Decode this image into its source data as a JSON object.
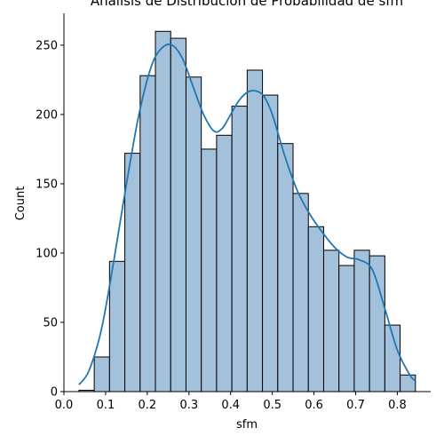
{
  "chart_data": {
    "type": "bar",
    "title": "Análisis de Distribución de Probabilidad de sfm",
    "xlabel": "sfm",
    "ylabel": "Count",
    "xlim": [
      0.0,
      0.88
    ],
    "ylim": [
      0,
      273
    ],
    "x_ticks": [
      0.0,
      0.1,
      0.2,
      0.3,
      0.4,
      0.5,
      0.6,
      0.7,
      0.8
    ],
    "x_tick_labels": [
      "0.0",
      "0.1",
      "0.2",
      "0.3",
      "0.4",
      "0.5",
      "0.6",
      "0.7",
      "0.8"
    ],
    "y_ticks": [
      0,
      50,
      100,
      150,
      200,
      250
    ],
    "y_tick_labels": [
      "0",
      "50",
      "100",
      "150",
      "200",
      "250"
    ],
    "bin_edges": [
      0.036,
      0.0727,
      0.1094,
      0.1461,
      0.1828,
      0.2195,
      0.2562,
      0.2929,
      0.3296,
      0.3663,
      0.403,
      0.4397,
      0.4764,
      0.5131,
      0.5498,
      0.5865,
      0.6232,
      0.6599,
      0.6966,
      0.7333,
      0.77,
      0.8067,
      0.8434
    ],
    "counts": [
      1,
      25,
      94,
      172,
      228,
      260,
      255,
      227,
      175,
      185,
      206,
      232,
      214,
      179,
      143,
      119,
      102,
      91,
      102,
      98,
      48,
      12
    ],
    "kde": {
      "x": [
        0.036,
        0.06,
        0.09,
        0.12,
        0.15,
        0.18,
        0.21,
        0.235,
        0.26,
        0.285,
        0.31,
        0.335,
        0.36,
        0.38,
        0.4,
        0.42,
        0.44,
        0.46,
        0.48,
        0.5,
        0.53,
        0.56,
        0.59,
        0.62,
        0.65,
        0.68,
        0.71,
        0.74,
        0.77,
        0.8,
        0.83,
        0.843
      ],
      "y": [
        5,
        15,
        45,
        95,
        150,
        200,
        235,
        248,
        250,
        240,
        220,
        200,
        188,
        190,
        200,
        210,
        216,
        217,
        213,
        200,
        170,
        145,
        128,
        115,
        104,
        97,
        95,
        88,
        60,
        30,
        12,
        8
      ]
    },
    "grid": false,
    "legend": "none",
    "colors": {
      "bar_fill": "#a3c1da",
      "bar_edge": "#000000",
      "kde_line": "#1f77b4",
      "axis": "#000000"
    }
  }
}
